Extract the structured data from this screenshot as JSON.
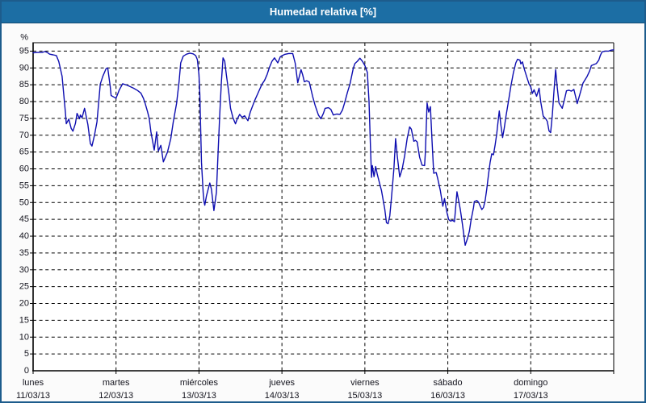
{
  "window": {
    "title": "Humedad relativa [%]"
  },
  "colors": {
    "titlebar_bg": "#1C6EA4",
    "frame_border": "#1d5c8c",
    "plot_bg": "#ffffff",
    "grid": "#000000",
    "axis": "#000000",
    "text": "#14141e",
    "line": "#0d0db0"
  },
  "chart_data": {
    "type": "line",
    "title": "Humedad relativa [%]",
    "grid": true,
    "legend": "none",
    "y_axis": {
      "unit_label": "%",
      "min": 0,
      "max": 95,
      "plot_max": 97.5,
      "tick_step": 5
    },
    "x_axis": {
      "unit": "days",
      "range_days": 7,
      "days": [
        {
          "name": "lunes",
          "date": "11/03/13"
        },
        {
          "name": "martes",
          "date": "12/03/13"
        },
        {
          "name": "miércoles",
          "date": "13/03/13"
        },
        {
          "name": "jueves",
          "date": "14/03/13"
        },
        {
          "name": "viernes",
          "date": "15/03/13"
        },
        {
          "name": "sábado",
          "date": "16/03/13"
        },
        {
          "name": "domingo",
          "date": "17/03/13"
        }
      ]
    },
    "series": [
      {
        "name": "Humedad relativa",
        "color": "#0d0db0",
        "points": [
          [
            0,
            94.5
          ],
          [
            0.05,
            94.6
          ],
          [
            0.11,
            94.6
          ],
          [
            0.14,
            94.9
          ],
          [
            0.17,
            94.6
          ],
          [
            0.2,
            94.1
          ],
          [
            0.24,
            93.9
          ],
          [
            0.28,
            93.7
          ],
          [
            0.31,
            91.9
          ],
          [
            0.35,
            87.5
          ],
          [
            0.37,
            82
          ],
          [
            0.39,
            76.5
          ],
          [
            0.4,
            73.4
          ],
          [
            0.43,
            74.8
          ],
          [
            0.46,
            72
          ],
          [
            0.48,
            71.2
          ],
          [
            0.51,
            73.5
          ],
          [
            0.53,
            76.5
          ],
          [
            0.56,
            74.9
          ],
          [
            0.57,
            76
          ],
          [
            0.59,
            75.2
          ],
          [
            0.62,
            78
          ],
          [
            0.66,
            73.2
          ],
          [
            0.69,
            67.5
          ],
          [
            0.71,
            66.8
          ],
          [
            0.74,
            70
          ],
          [
            0.77,
            74
          ],
          [
            0.81,
            85.2
          ],
          [
            0.84,
            87.5
          ],
          [
            0.88,
            89.8
          ],
          [
            0.9,
            90
          ],
          [
            0.93,
            84.5
          ],
          [
            0.94,
            81.8
          ],
          [
            0.97,
            81.4
          ],
          [
            1.0,
            81
          ],
          [
            1.04,
            83.5
          ],
          [
            1.08,
            85.3
          ],
          [
            1.14,
            84.8
          ],
          [
            1.21,
            84
          ],
          [
            1.26,
            83.3
          ],
          [
            1.3,
            82.5
          ],
          [
            1.33,
            81
          ],
          [
            1.35,
            79.5
          ],
          [
            1.38,
            77
          ],
          [
            1.4,
            75
          ],
          [
            1.42,
            71
          ],
          [
            1.46,
            65.6
          ],
          [
            1.49,
            71
          ],
          [
            1.51,
            65.3
          ],
          [
            1.54,
            67
          ],
          [
            1.57,
            62.1
          ],
          [
            1.62,
            65
          ],
          [
            1.66,
            69
          ],
          [
            1.69,
            74
          ],
          [
            1.73,
            79.5
          ],
          [
            1.76,
            86
          ],
          [
            1.78,
            91.5
          ],
          [
            1.81,
            93.5
          ],
          [
            1.85,
            94.1
          ],
          [
            1.89,
            94.4
          ],
          [
            1.93,
            94.2
          ],
          [
            1.96,
            93.7
          ],
          [
            1.98,
            92.5
          ],
          [
            2.0,
            88
          ],
          [
            2.01,
            82
          ],
          [
            2.03,
            62
          ],
          [
            2.05,
            53
          ],
          [
            2.06,
            50.3
          ],
          [
            2.07,
            49.2
          ],
          [
            2.09,
            52
          ],
          [
            2.13,
            55.8
          ],
          [
            2.15,
            54
          ],
          [
            2.18,
            47.6
          ],
          [
            2.21,
            53
          ],
          [
            2.23,
            65
          ],
          [
            2.25,
            76
          ],
          [
            2.27,
            86
          ],
          [
            2.29,
            93
          ],
          [
            2.31,
            92
          ],
          [
            2.33,
            88
          ],
          [
            2.36,
            82.5
          ],
          [
            2.38,
            78
          ],
          [
            2.41,
            75.2
          ],
          [
            2.44,
            73.4
          ],
          [
            2.46,
            74.8
          ],
          [
            2.49,
            76.2
          ],
          [
            2.52,
            75.3
          ],
          [
            2.55,
            75.8
          ],
          [
            2.59,
            74.3
          ],
          [
            2.62,
            77
          ],
          [
            2.67,
            80.2
          ],
          [
            2.72,
            83
          ],
          [
            2.76,
            85.2
          ],
          [
            2.79,
            86.3
          ],
          [
            2.82,
            88
          ],
          [
            2.85,
            90.2
          ],
          [
            2.88,
            92
          ],
          [
            2.91,
            93
          ],
          [
            2.95,
            91.5
          ],
          [
            2.98,
            93.3
          ],
          [
            3.03,
            94
          ],
          [
            3.08,
            94.3
          ],
          [
            3.13,
            94.3
          ],
          [
            3.16,
            91.4
          ],
          [
            3.19,
            85.6
          ],
          [
            3.23,
            89.5
          ],
          [
            3.25,
            88
          ],
          [
            3.27,
            85.9
          ],
          [
            3.3,
            86.2
          ],
          [
            3.33,
            85.8
          ],
          [
            3.37,
            81.6
          ],
          [
            3.4,
            78.9
          ],
          [
            3.44,
            76
          ],
          [
            3.47,
            74.9
          ],
          [
            3.5,
            76.5
          ],
          [
            3.52,
            78
          ],
          [
            3.56,
            78.2
          ],
          [
            3.59,
            77.7
          ],
          [
            3.62,
            76
          ],
          [
            3.66,
            76.3
          ],
          [
            3.7,
            76.2
          ],
          [
            3.73,
            77.5
          ],
          [
            3.76,
            80
          ],
          [
            3.79,
            82.8
          ],
          [
            3.82,
            85.2
          ],
          [
            3.86,
            89.9
          ],
          [
            3.88,
            91.3
          ],
          [
            3.91,
            92
          ],
          [
            3.94,
            92.9
          ],
          [
            3.97,
            92
          ],
          [
            4.0,
            90.7
          ],
          [
            4.03,
            88.7
          ],
          [
            4.05,
            80
          ],
          [
            4.07,
            65
          ],
          [
            4.08,
            57.5
          ],
          [
            4.09,
            61
          ],
          [
            4.11,
            57.7
          ],
          [
            4.13,
            60.7
          ],
          [
            4.15,
            58.3
          ],
          [
            4.18,
            55.5
          ],
          [
            4.2,
            53.6
          ],
          [
            4.24,
            48
          ],
          [
            4.26,
            44
          ],
          [
            4.28,
            43.7
          ],
          [
            4.3,
            46
          ],
          [
            4.32,
            51.2
          ],
          [
            4.35,
            60
          ],
          [
            4.37,
            69
          ],
          [
            4.39,
            64
          ],
          [
            4.42,
            57.6
          ],
          [
            4.45,
            60
          ],
          [
            4.48,
            64
          ],
          [
            4.51,
            69
          ],
          [
            4.54,
            72.5
          ],
          [
            4.56,
            71.8
          ],
          [
            4.59,
            68.2
          ],
          [
            4.61,
            68.5
          ],
          [
            4.63,
            68
          ],
          [
            4.66,
            63.5
          ],
          [
            4.69,
            61.1
          ],
          [
            4.72,
            61
          ],
          [
            4.73,
            65
          ],
          [
            4.75,
            79.6
          ],
          [
            4.77,
            76.9
          ],
          [
            4.79,
            78.5
          ],
          [
            4.81,
            68
          ],
          [
            4.83,
            58.7
          ],
          [
            4.86,
            58.9
          ],
          [
            4.88,
            57
          ],
          [
            4.91,
            53.6
          ],
          [
            4.94,
            48.9
          ],
          [
            4.96,
            51.2
          ],
          [
            4.99,
            47
          ],
          [
            5.01,
            45
          ],
          [
            5.03,
            44.5
          ],
          [
            5.06,
            44.7
          ],
          [
            5.08,
            44.3
          ],
          [
            5.11,
            53.2
          ],
          [
            5.15,
            48
          ],
          [
            5.17,
            44.7
          ],
          [
            5.19,
            41
          ],
          [
            5.21,
            37.3
          ],
          [
            5.24,
            39.5
          ],
          [
            5.26,
            41.5
          ],
          [
            5.28,
            44.7
          ],
          [
            5.31,
            48.5
          ],
          [
            5.32,
            50.3
          ],
          [
            5.35,
            50.6
          ],
          [
            5.37,
            50.1
          ],
          [
            5.39,
            49
          ],
          [
            5.41,
            47.9
          ],
          [
            5.43,
            48.5
          ],
          [
            5.45,
            50.6
          ],
          [
            5.47,
            54
          ],
          [
            5.49,
            58.2
          ],
          [
            5.51,
            62
          ],
          [
            5.53,
            64.5
          ],
          [
            5.55,
            64.2
          ],
          [
            5.57,
            67
          ],
          [
            5.59,
            70.5
          ],
          [
            5.61,
            75
          ],
          [
            5.62,
            77.2
          ],
          [
            5.64,
            73
          ],
          [
            5.66,
            69.3
          ],
          [
            5.68,
            72
          ],
          [
            5.7,
            75.5
          ],
          [
            5.73,
            80
          ],
          [
            5.76,
            84.5
          ],
          [
            5.79,
            88.5
          ],
          [
            5.82,
            91.5
          ],
          [
            5.84,
            92.6
          ],
          [
            5.87,
            92.3
          ],
          [
            5.88,
            91.2
          ],
          [
            5.9,
            91.8
          ],
          [
            5.92,
            89.8
          ],
          [
            5.95,
            87.5
          ],
          [
            5.98,
            85.2
          ],
          [
            6.0,
            84.4
          ],
          [
            6.02,
            82.4
          ],
          [
            6.04,
            83.5
          ],
          [
            6.07,
            81.6
          ],
          [
            6.1,
            84
          ],
          [
            6.12,
            80
          ],
          [
            6.15,
            75.7
          ],
          [
            6.18,
            74.9
          ],
          [
            6.2,
            74.1
          ],
          [
            6.22,
            71.3
          ],
          [
            6.24,
            70.8
          ],
          [
            6.26,
            76
          ],
          [
            6.28,
            83
          ],
          [
            6.3,
            89.5
          ],
          [
            6.32,
            84
          ],
          [
            6.34,
            79.6
          ],
          [
            6.37,
            78.4
          ],
          [
            6.38,
            78
          ],
          [
            6.41,
            81
          ],
          [
            6.43,
            83.2
          ],
          [
            6.46,
            83.4
          ],
          [
            6.49,
            83.1
          ],
          [
            6.52,
            83.6
          ],
          [
            6.55,
            80.5
          ],
          [
            6.56,
            79.4
          ],
          [
            6.59,
            82
          ],
          [
            6.63,
            85.5
          ],
          [
            6.68,
            87.5
          ],
          [
            6.71,
            89.1
          ],
          [
            6.73,
            90.7
          ],
          [
            6.76,
            91
          ],
          [
            6.79,
            91.3
          ],
          [
            6.82,
            92.3
          ],
          [
            6.84,
            93.8
          ],
          [
            6.86,
            94.8
          ],
          [
            6.9,
            95
          ],
          [
            6.94,
            95
          ],
          [
            6.97,
            95.3
          ],
          [
            7.0,
            95.4
          ]
        ]
      }
    ]
  }
}
